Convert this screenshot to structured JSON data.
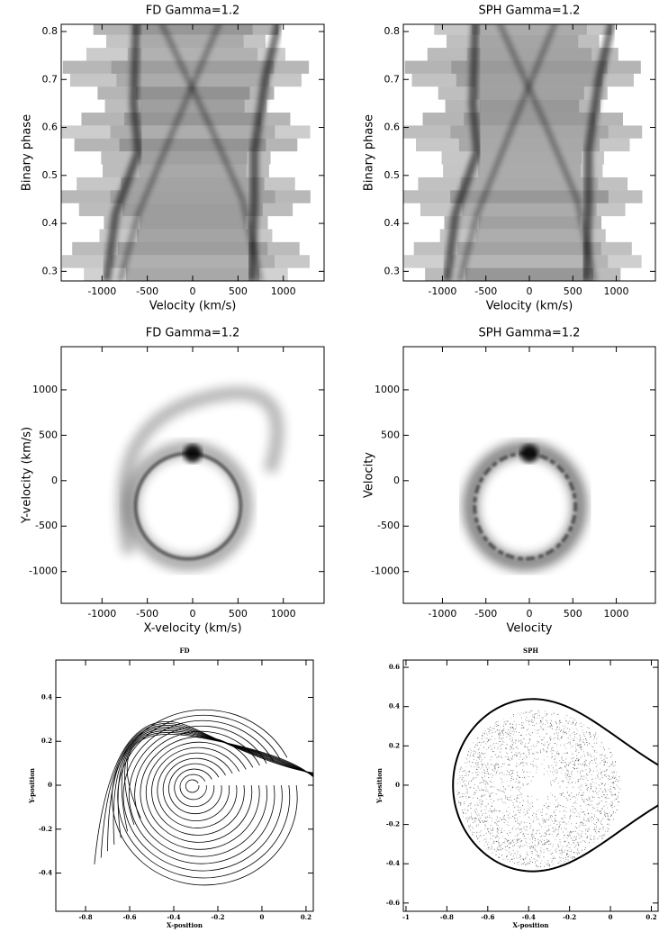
{
  "chart_data": [
    {
      "type": "heatmap",
      "title": "FD  Gamma=1.2",
      "xlabel": "Velocity  (km/s)",
      "ylabel": "Binary phase",
      "xlim": [
        -1450,
        1450
      ],
      "ylim": [
        0.28,
        0.815
      ],
      "xticks": [
        -1000,
        -500,
        0,
        500,
        1000
      ],
      "yticks": [
        0.3,
        0.4,
        0.5,
        0.6,
        0.7,
        0.8
      ]
    },
    {
      "type": "heatmap",
      "title": "SPH  Gamma=1.2",
      "xlabel": "Velocity  (km/s)",
      "ylabel": "Binary phase",
      "xlim": [
        -1450,
        1450
      ],
      "ylim": [
        0.28,
        0.815
      ],
      "xticks": [
        -1000,
        -500,
        0,
        500,
        1000
      ],
      "yticks": [
        0.3,
        0.4,
        0.5,
        0.6,
        0.7,
        0.8
      ]
    },
    {
      "type": "heatmap",
      "title": "FD  Gamma=1.2",
      "xlabel": "X-velocity  (km/s)",
      "ylabel": "Y-velocity  (km/s)",
      "xlim": [
        -1450,
        1450
      ],
      "ylim": [
        -1350,
        1475
      ],
      "xticks": [
        -1000,
        -500,
        0,
        500,
        1000
      ],
      "yticks": [
        -1000,
        -500,
        0,
        500,
        1000
      ]
    },
    {
      "type": "heatmap",
      "title": "SPH  Gamma=1.2",
      "xlabel": "Velocity",
      "ylabel": "Velocity",
      "xlim": [
        -1450,
        1450
      ],
      "ylim": [
        -1350,
        1475
      ],
      "xticks": [
        -1000,
        -500,
        0,
        500,
        1000
      ],
      "yticks": [
        -1000,
        -500,
        0,
        500,
        1000
      ]
    },
    {
      "type": "contour",
      "title": "FD",
      "xlabel": "X-position",
      "ylabel": "Y-position",
      "xlim": [
        -0.935,
        0.233
      ],
      "ylim": [
        -0.574,
        0.57
      ],
      "xticks": [
        -0.8,
        -0.6,
        -0.4,
        -0.2,
        0,
        0.2
      ],
      "yticks": [
        -0.4,
        -0.2,
        0,
        0.2,
        0.4
      ]
    },
    {
      "type": "scatter",
      "title": "SPH",
      "xlabel": "X-position",
      "ylabel": "Y-position",
      "xlim": [
        -1.013,
        0.233
      ],
      "ylim": [
        -0.642,
        0.637
      ],
      "xticks": [
        -1,
        -0.8,
        -0.6,
        -0.4,
        -0.2,
        0,
        0.2
      ],
      "yticks": [
        -0.6,
        -0.4,
        -0.2,
        0,
        0.2,
        0.4,
        0.6
      ]
    }
  ]
}
